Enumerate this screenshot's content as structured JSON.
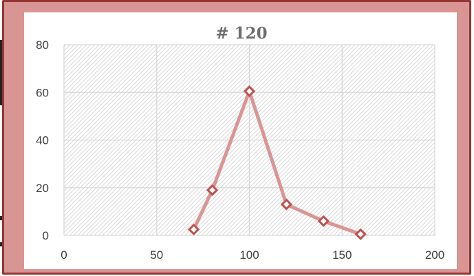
{
  "chart_data": {
    "type": "scatter",
    "title": "# 120",
    "xlabel": "",
    "ylabel": "",
    "xlim": [
      0,
      200
    ],
    "ylim": [
      0,
      80
    ],
    "x_ticks": [
      "0",
      "50",
      "100",
      "150",
      "200"
    ],
    "y_ticks": [
      "0",
      "20",
      "40",
      "60",
      "80"
    ],
    "grid": true,
    "legend": "none",
    "series": [
      {
        "x": [
          70,
          80,
          100,
          120,
          140,
          160
        ],
        "y": [
          2.5,
          19,
          60.5,
          13,
          6,
          0.5
        ],
        "line_color": "#d99594",
        "marker_color": "#c0504d",
        "marker": "diamond"
      }
    ]
  },
  "colors": {
    "frame_fill": "#d99594",
    "frame_border": "#943634",
    "plot_hatch": "#d9d9d9",
    "gridline": "#d9d9d9"
  }
}
